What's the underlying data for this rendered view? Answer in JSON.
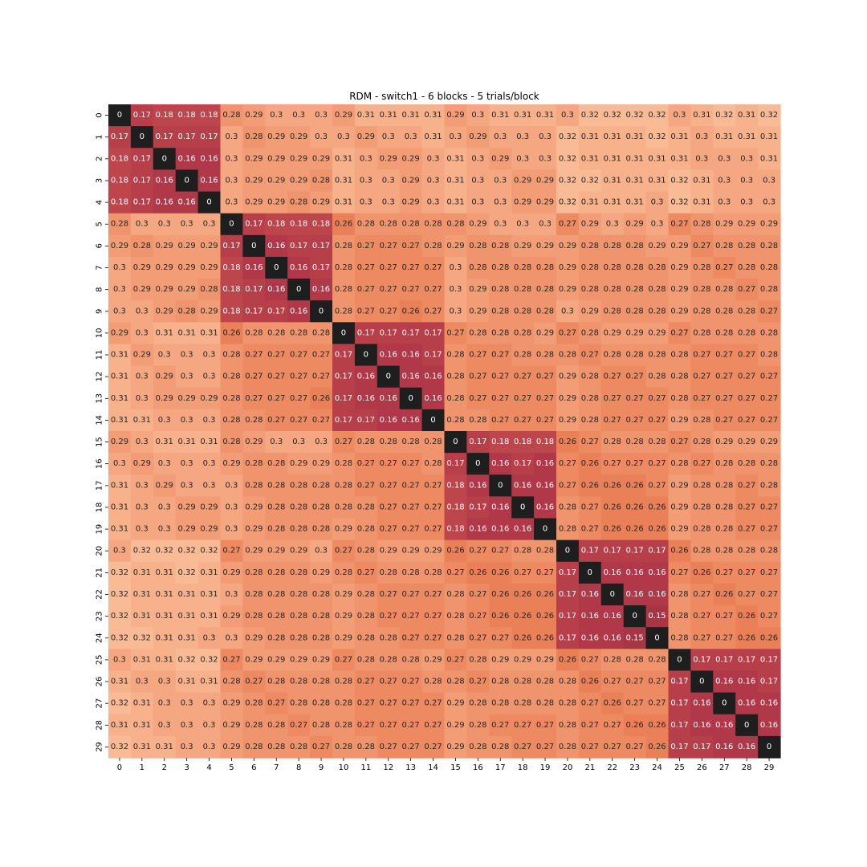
{
  "chart_data": {
    "type": "heatmap",
    "title": "RDM - switch1 - 6 blocks - 5 trials/block",
    "x_ticks": [
      "0",
      "1",
      "2",
      "3",
      "4",
      "5",
      "6",
      "7",
      "8",
      "9",
      "10",
      "11",
      "12",
      "13",
      "14",
      "15",
      "16",
      "17",
      "18",
      "19",
      "20",
      "21",
      "22",
      "23",
      "24",
      "25",
      "26",
      "27",
      "28",
      "29"
    ],
    "y_ticks": [
      "0",
      "1",
      "2",
      "3",
      "4",
      "5",
      "6",
      "7",
      "8",
      "9",
      "10",
      "11",
      "12",
      "13",
      "14",
      "15",
      "16",
      "17",
      "18",
      "19",
      "20",
      "21",
      "22",
      "23",
      "24",
      "25",
      "26",
      "27",
      "28",
      "29"
    ],
    "value_range": [
      0,
      0.32
    ],
    "colorbar": false,
    "colors": {
      "zero": "#1e1e1e",
      "low": "#b03848",
      "mid": "#ea7f57",
      "high": "#f9bb95"
    },
    "matrix": [
      [
        0,
        0.17,
        0.18,
        0.18,
        0.18,
        0.28,
        0.29,
        0.3,
        0.3,
        0.3,
        0.29,
        0.31,
        0.31,
        0.31,
        0.31,
        0.29,
        0.3,
        0.31,
        0.31,
        0.31,
        0.3,
        0.32,
        0.32,
        0.32,
        0.32,
        0.3,
        0.31,
        0.32,
        0.31,
        0.32
      ],
      [
        0.17,
        0,
        0.17,
        0.17,
        0.17,
        0.3,
        0.28,
        0.29,
        0.29,
        0.3,
        0.3,
        0.29,
        0.3,
        0.3,
        0.31,
        0.3,
        0.29,
        0.3,
        0.3,
        0.3,
        0.32,
        0.31,
        0.31,
        0.31,
        0.32,
        0.31,
        0.3,
        0.31,
        0.31,
        0.31
      ],
      [
        0.18,
        0.17,
        0,
        0.16,
        0.16,
        0.3,
        0.29,
        0.29,
        0.29,
        0.29,
        0.31,
        0.3,
        0.29,
        0.29,
        0.3,
        0.31,
        0.3,
        0.29,
        0.3,
        0.3,
        0.32,
        0.31,
        0.31,
        0.31,
        0.31,
        0.31,
        0.3,
        0.3,
        0.3,
        0.31
      ],
      [
        0.18,
        0.17,
        0.16,
        0,
        0.16,
        0.3,
        0.29,
        0.29,
        0.29,
        0.28,
        0.31,
        0.3,
        0.3,
        0.29,
        0.3,
        0.31,
        0.3,
        0.3,
        0.29,
        0.29,
        0.32,
        0.32,
        0.31,
        0.31,
        0.31,
        0.32,
        0.31,
        0.3,
        0.3,
        0.3
      ],
      [
        0.18,
        0.17,
        0.16,
        0.16,
        0,
        0.3,
        0.29,
        0.29,
        0.28,
        0.29,
        0.31,
        0.3,
        0.3,
        0.29,
        0.3,
        0.31,
        0.3,
        0.3,
        0.29,
        0.29,
        0.32,
        0.31,
        0.31,
        0.31,
        0.3,
        0.32,
        0.31,
        0.3,
        0.3,
        0.3
      ],
      [
        0.28,
        0.3,
        0.3,
        0.3,
        0.3,
        0,
        0.17,
        0.18,
        0.18,
        0.18,
        0.26,
        0.28,
        0.28,
        0.28,
        0.28,
        0.28,
        0.29,
        0.3,
        0.3,
        0.3,
        0.27,
        0.29,
        0.3,
        0.29,
        0.3,
        0.27,
        0.28,
        0.29,
        0.29,
        0.29
      ],
      [
        0.29,
        0.28,
        0.29,
        0.29,
        0.29,
        0.17,
        0,
        0.16,
        0.17,
        0.17,
        0.28,
        0.27,
        0.27,
        0.27,
        0.28,
        0.29,
        0.28,
        0.28,
        0.29,
        0.29,
        0.29,
        0.28,
        0.28,
        0.28,
        0.29,
        0.29,
        0.27,
        0.28,
        0.28,
        0.28
      ],
      [
        0.3,
        0.29,
        0.29,
        0.29,
        0.29,
        0.18,
        0.16,
        0,
        0.16,
        0.17,
        0.28,
        0.27,
        0.27,
        0.27,
        0.27,
        0.3,
        0.28,
        0.28,
        0.28,
        0.28,
        0.29,
        0.28,
        0.28,
        0.28,
        0.28,
        0.29,
        0.28,
        0.27,
        0.28,
        0.28
      ],
      [
        0.3,
        0.29,
        0.29,
        0.29,
        0.28,
        0.18,
        0.17,
        0.16,
        0,
        0.16,
        0.28,
        0.27,
        0.27,
        0.27,
        0.27,
        0.3,
        0.29,
        0.28,
        0.28,
        0.28,
        0.29,
        0.28,
        0.28,
        0.28,
        0.28,
        0.29,
        0.28,
        0.28,
        0.27,
        0.28
      ],
      [
        0.3,
        0.3,
        0.29,
        0.28,
        0.29,
        0.18,
        0.17,
        0.17,
        0.16,
        0,
        0.28,
        0.27,
        0.27,
        0.26,
        0.27,
        0.3,
        0.29,
        0.28,
        0.28,
        0.28,
        0.3,
        0.29,
        0.28,
        0.28,
        0.28,
        0.29,
        0.28,
        0.28,
        0.28,
        0.27
      ],
      [
        0.29,
        0.3,
        0.31,
        0.31,
        0.31,
        0.26,
        0.28,
        0.28,
        0.28,
        0.28,
        0,
        0.17,
        0.17,
        0.17,
        0.17,
        0.27,
        0.28,
        0.28,
        0.28,
        0.29,
        0.27,
        0.28,
        0.29,
        0.29,
        0.29,
        0.27,
        0.28,
        0.28,
        0.28,
        0.28
      ],
      [
        0.31,
        0.29,
        0.3,
        0.3,
        0.3,
        0.28,
        0.27,
        0.27,
        0.27,
        0.27,
        0.17,
        0,
        0.16,
        0.16,
        0.17,
        0.28,
        0.27,
        0.27,
        0.28,
        0.28,
        0.28,
        0.27,
        0.28,
        0.28,
        0.28,
        0.28,
        0.27,
        0.27,
        0.27,
        0.28
      ],
      [
        0.31,
        0.3,
        0.29,
        0.3,
        0.3,
        0.28,
        0.27,
        0.27,
        0.27,
        0.27,
        0.17,
        0.16,
        0,
        0.16,
        0.16,
        0.28,
        0.27,
        0.27,
        0.27,
        0.27,
        0.29,
        0.28,
        0.27,
        0.27,
        0.28,
        0.28,
        0.27,
        0.27,
        0.27,
        0.27
      ],
      [
        0.31,
        0.3,
        0.29,
        0.29,
        0.29,
        0.28,
        0.27,
        0.27,
        0.27,
        0.26,
        0.17,
        0.16,
        0.16,
        0,
        0.16,
        0.28,
        0.27,
        0.27,
        0.27,
        0.27,
        0.29,
        0.28,
        0.27,
        0.27,
        0.27,
        0.28,
        0.27,
        0.27,
        0.27,
        0.27
      ],
      [
        0.31,
        0.31,
        0.3,
        0.3,
        0.3,
        0.28,
        0.28,
        0.27,
        0.27,
        0.27,
        0.17,
        0.17,
        0.16,
        0.16,
        0,
        0.28,
        0.28,
        0.27,
        0.27,
        0.27,
        0.29,
        0.28,
        0.27,
        0.27,
        0.27,
        0.29,
        0.28,
        0.27,
        0.27,
        0.27
      ],
      [
        0.29,
        0.3,
        0.31,
        0.31,
        0.31,
        0.28,
        0.29,
        0.3,
        0.3,
        0.3,
        0.27,
        0.28,
        0.28,
        0.28,
        0.28,
        0,
        0.17,
        0.18,
        0.18,
        0.18,
        0.26,
        0.27,
        0.28,
        0.28,
        0.28,
        0.27,
        0.28,
        0.29,
        0.29,
        0.29
      ],
      [
        0.3,
        0.29,
        0.3,
        0.3,
        0.3,
        0.29,
        0.28,
        0.28,
        0.29,
        0.29,
        0.28,
        0.27,
        0.27,
        0.27,
        0.28,
        0.17,
        0,
        0.16,
        0.17,
        0.16,
        0.27,
        0.26,
        0.27,
        0.27,
        0.27,
        0.28,
        0.27,
        0.28,
        0.28,
        0.28
      ],
      [
        0.31,
        0.3,
        0.29,
        0.3,
        0.3,
        0.3,
        0.28,
        0.28,
        0.28,
        0.28,
        0.28,
        0.27,
        0.27,
        0.27,
        0.27,
        0.18,
        0.16,
        0,
        0.16,
        0.16,
        0.27,
        0.26,
        0.26,
        0.26,
        0.27,
        0.29,
        0.28,
        0.28,
        0.27,
        0.28
      ],
      [
        0.31,
        0.3,
        0.3,
        0.29,
        0.29,
        0.3,
        0.29,
        0.28,
        0.28,
        0.28,
        0.28,
        0.28,
        0.27,
        0.27,
        0.27,
        0.18,
        0.17,
        0.16,
        0,
        0.16,
        0.28,
        0.27,
        0.26,
        0.26,
        0.26,
        0.29,
        0.28,
        0.28,
        0.27,
        0.27
      ],
      [
        0.31,
        0.3,
        0.3,
        0.29,
        0.29,
        0.3,
        0.29,
        0.28,
        0.28,
        0.28,
        0.29,
        0.28,
        0.27,
        0.27,
        0.27,
        0.18,
        0.16,
        0.16,
        0.16,
        0,
        0.28,
        0.27,
        0.26,
        0.26,
        0.26,
        0.29,
        0.28,
        0.28,
        0.27,
        0.27
      ],
      [
        0.3,
        0.32,
        0.32,
        0.32,
        0.32,
        0.27,
        0.29,
        0.29,
        0.29,
        0.3,
        0.27,
        0.28,
        0.29,
        0.29,
        0.29,
        0.26,
        0.27,
        0.27,
        0.28,
        0.28,
        0,
        0.17,
        0.17,
        0.17,
        0.17,
        0.26,
        0.28,
        0.28,
        0.28,
        0.28
      ],
      [
        0.32,
        0.31,
        0.31,
        0.32,
        0.31,
        0.29,
        0.28,
        0.28,
        0.28,
        0.29,
        0.28,
        0.27,
        0.28,
        0.28,
        0.28,
        0.27,
        0.26,
        0.26,
        0.27,
        0.27,
        0.17,
        0,
        0.16,
        0.16,
        0.16,
        0.27,
        0.26,
        0.27,
        0.27,
        0.27
      ],
      [
        0.32,
        0.31,
        0.31,
        0.31,
        0.31,
        0.3,
        0.28,
        0.28,
        0.28,
        0.28,
        0.29,
        0.28,
        0.27,
        0.27,
        0.27,
        0.28,
        0.27,
        0.26,
        0.26,
        0.26,
        0.17,
        0.16,
        0,
        0.16,
        0.16,
        0.28,
        0.27,
        0.26,
        0.27,
        0.27
      ],
      [
        0.32,
        0.31,
        0.31,
        0.31,
        0.31,
        0.29,
        0.28,
        0.28,
        0.28,
        0.28,
        0.29,
        0.28,
        0.27,
        0.27,
        0.27,
        0.28,
        0.27,
        0.26,
        0.26,
        0.26,
        0.17,
        0.16,
        0.16,
        0,
        0.15,
        0.28,
        0.27,
        0.27,
        0.26,
        0.27
      ],
      [
        0.32,
        0.32,
        0.31,
        0.31,
        0.3,
        0.3,
        0.29,
        0.28,
        0.28,
        0.28,
        0.29,
        0.28,
        0.28,
        0.27,
        0.27,
        0.28,
        0.27,
        0.27,
        0.26,
        0.26,
        0.17,
        0.16,
        0.16,
        0.15,
        0,
        0.28,
        0.27,
        0.27,
        0.26,
        0.26
      ],
      [
        0.3,
        0.31,
        0.31,
        0.32,
        0.32,
        0.27,
        0.29,
        0.29,
        0.29,
        0.29,
        0.27,
        0.28,
        0.28,
        0.28,
        0.29,
        0.27,
        0.28,
        0.29,
        0.29,
        0.29,
        0.26,
        0.27,
        0.28,
        0.28,
        0.28,
        0,
        0.17,
        0.17,
        0.17,
        0.17
      ],
      [
        0.31,
        0.3,
        0.3,
        0.31,
        0.31,
        0.28,
        0.27,
        0.28,
        0.28,
        0.28,
        0.28,
        0.27,
        0.27,
        0.27,
        0.28,
        0.28,
        0.27,
        0.28,
        0.28,
        0.28,
        0.28,
        0.26,
        0.27,
        0.27,
        0.27,
        0.17,
        0,
        0.16,
        0.16,
        0.17
      ],
      [
        0.32,
        0.31,
        0.3,
        0.3,
        0.3,
        0.29,
        0.28,
        0.27,
        0.28,
        0.28,
        0.28,
        0.27,
        0.27,
        0.27,
        0.27,
        0.29,
        0.28,
        0.28,
        0.28,
        0.28,
        0.28,
        0.27,
        0.26,
        0.27,
        0.27,
        0.17,
        0.16,
        0,
        0.16,
        0.16
      ],
      [
        0.31,
        0.31,
        0.3,
        0.3,
        0.3,
        0.29,
        0.28,
        0.28,
        0.27,
        0.28,
        0.28,
        0.27,
        0.27,
        0.27,
        0.27,
        0.29,
        0.28,
        0.27,
        0.27,
        0.27,
        0.28,
        0.27,
        0.27,
        0.26,
        0.26,
        0.17,
        0.16,
        0.16,
        0,
        0.16
      ],
      [
        0.32,
        0.31,
        0.31,
        0.3,
        0.3,
        0.29,
        0.28,
        0.28,
        0.28,
        0.27,
        0.28,
        0.28,
        0.27,
        0.27,
        0.27,
        0.29,
        0.28,
        0.28,
        0.27,
        0.27,
        0.28,
        0.27,
        0.27,
        0.27,
        0.26,
        0.17,
        0.17,
        0.16,
        0.16,
        0
      ]
    ]
  }
}
